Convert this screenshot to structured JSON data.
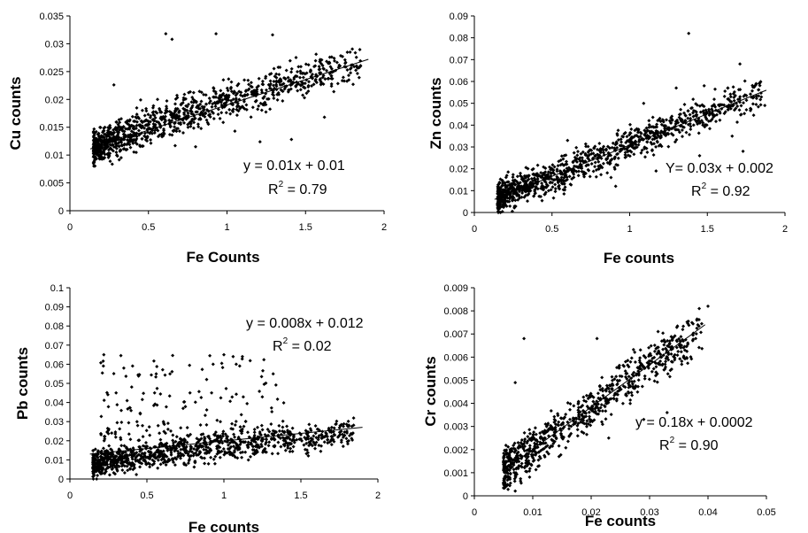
{
  "chart_data": [
    {
      "type": "scatter",
      "xlabel": "Fe Counts",
      "ylabel": "Cu counts",
      "xlim": [
        0,
        2
      ],
      "ylim": [
        0,
        0.035
      ],
      "x_ticks": [
        "0",
        "0.5",
        "1",
        "1.5",
        "2"
      ],
      "y_ticks": [
        "0",
        "0.005",
        "0.01",
        "0.015",
        "0.02",
        "0.025",
        "0.03",
        "0.035"
      ],
      "equation": "y = 0.01x + 0.01",
      "r2_label": "R",
      "r2_sup": "2",
      "r2_value": " = 0.79",
      "trendline": {
        "x": [
          0.13,
          1.9
        ],
        "y": [
          0.0111,
          0.0272
        ]
      },
      "trend_points": [
        [
          0.15,
          0.0112
        ],
        [
          0.2,
          0.0118
        ],
        [
          0.3,
          0.013
        ],
        [
          0.4,
          0.0142
        ],
        [
          0.5,
          0.0152
        ],
        [
          0.6,
          0.0163
        ],
        [
          0.7,
          0.0172
        ],
        [
          0.8,
          0.018
        ],
        [
          0.9,
          0.019
        ],
        [
          1.0,
          0.0198
        ],
        [
          1.1,
          0.0205
        ],
        [
          1.2,
          0.0212
        ],
        [
          1.3,
          0.0222
        ],
        [
          1.4,
          0.0232
        ],
        [
          1.5,
          0.024
        ],
        [
          1.6,
          0.0248
        ],
        [
          1.7,
          0.0255
        ],
        [
          1.85,
          0.0262
        ]
      ],
      "spread": 0.0016,
      "point_count": 1100,
      "outliers": [
        [
          0.61,
          0.0318
        ],
        [
          0.65,
          0.0308
        ],
        [
          0.93,
          0.0318
        ],
        [
          1.29,
          0.0316
        ],
        [
          1.21,
          0.0124
        ],
        [
          1.41,
          0.0128
        ],
        [
          1.62,
          0.0168
        ],
        [
          0.28,
          0.0226
        ],
        [
          0.67,
          0.0117
        ],
        [
          0.8,
          0.0115
        ],
        [
          1.05,
          0.0143
        ],
        [
          1.68,
          0.0214
        ],
        [
          0.45,
          0.0199
        ]
      ]
    },
    {
      "type": "scatter",
      "xlabel": "Fe counts",
      "ylabel": "Zn counts",
      "xlim": [
        0,
        2
      ],
      "ylim": [
        0,
        0.09
      ],
      "x_ticks": [
        "0",
        "0.5",
        "1",
        "1.5",
        "2"
      ],
      "y_ticks": [
        "0",
        "0.01",
        "0.02",
        "0.03",
        "0.04",
        "0.05",
        "0.06",
        "0.07",
        "0.08",
        "0.09"
      ],
      "equation": "Y= 0.03x + 0.002",
      "r2_label": "R",
      "r2_sup": "2",
      "r2_value": " = 0.92",
      "trendline": {
        "x": [
          0.13,
          1.88
        ],
        "y": [
          0.006,
          0.056
        ]
      },
      "trend_points": [
        [
          0.15,
          0.007
        ],
        [
          0.3,
          0.011
        ],
        [
          0.45,
          0.015
        ],
        [
          0.6,
          0.019
        ],
        [
          0.75,
          0.024
        ],
        [
          0.9,
          0.028
        ],
        [
          1.05,
          0.033
        ],
        [
          1.2,
          0.037
        ],
        [
          1.35,
          0.042
        ],
        [
          1.5,
          0.046
        ],
        [
          1.65,
          0.05
        ],
        [
          1.85,
          0.055
        ]
      ],
      "spread": 0.0035,
      "point_count": 1100,
      "outliers": [
        [
          1.38,
          0.082
        ],
        [
          1.71,
          0.068
        ],
        [
          1.48,
          0.058
        ],
        [
          1.09,
          0.05
        ],
        [
          1.3,
          0.057
        ],
        [
          0.88,
          0.016
        ],
        [
          0.91,
          0.012
        ],
        [
          1.17,
          0.019
        ],
        [
          1.45,
          0.026
        ],
        [
          1.66,
          0.035
        ],
        [
          1.73,
          0.028
        ],
        [
          1.87,
          0.049
        ],
        [
          0.6,
          0.033
        ]
      ]
    },
    {
      "type": "scatter",
      "xlabel": "Fe counts",
      "ylabel": "Pb counts",
      "xlim": [
        0,
        2
      ],
      "ylim": [
        0,
        0.1
      ],
      "x_ticks": [
        "0",
        "0.5",
        "1",
        "1.5",
        "2"
      ],
      "y_ticks": [
        "0",
        "0.01",
        "0.02",
        "0.03",
        "0.04",
        "0.05",
        "0.06",
        "0.07",
        "0.08",
        "0.09",
        "0.1"
      ],
      "equation": "y = 0.008x + 0.012",
      "r2_label": "R",
      "r2_sup": "2",
      "r2_value": " = 0.02",
      "trendline": {
        "x": [
          0.13,
          1.9
        ],
        "y": [
          0.013,
          0.027
        ]
      },
      "trend_points": [
        [
          0.15,
          0.008
        ],
        [
          0.3,
          0.01
        ],
        [
          0.5,
          0.012
        ],
        [
          0.7,
          0.014
        ],
        [
          0.9,
          0.016
        ],
        [
          1.1,
          0.018
        ],
        [
          1.3,
          0.02
        ],
        [
          1.5,
          0.021
        ],
        [
          1.7,
          0.023
        ],
        [
          1.85,
          0.025
        ]
      ],
      "spread": 0.0035,
      "point_count": 1000,
      "cloud": {
        "x_range": [
          0.2,
          1.4
        ],
        "y_range": [
          0.02,
          0.065
        ],
        "count": 170
      },
      "outliers": [
        [
          0.22,
          0.065
        ],
        [
          0.35,
          0.058
        ],
        [
          0.93,
          0.06
        ],
        [
          1.0,
          0.065
        ],
        [
          1.06,
          0.064
        ],
        [
          1.12,
          0.064
        ],
        [
          1.08,
          0.06
        ],
        [
          1.32,
          0.055
        ],
        [
          0.65,
          0.055
        ],
        [
          0.55,
          0.045
        ],
        [
          0.3,
          0.045
        ],
        [
          0.78,
          0.045
        ],
        [
          0.92,
          0.045
        ]
      ]
    },
    {
      "type": "scatter",
      "xlabel": "Fe counts",
      "ylabel": "Cr counts",
      "xlim": [
        0,
        0.05
      ],
      "ylim": [
        0,
        0.009
      ],
      "x_ticks": [
        "0",
        "0.01",
        "0.02",
        "0.03",
        "0.04",
        "0.05"
      ],
      "y_ticks": [
        "0",
        "0.001",
        "0.002",
        "0.003",
        "0.004",
        "0.005",
        "0.006",
        "0.007",
        "0.008",
        "0.009"
      ],
      "equation": "y = 0.18x + 0.0002",
      "r2_label": "R",
      "r2_sup": "2",
      "r2_value": " = 0.90",
      "trendline": {
        "x": [
          0.005,
          0.0395
        ],
        "y": [
          0.0011,
          0.0074
        ]
      },
      "trend_points": [
        [
          0.005,
          0.0011
        ],
        [
          0.008,
          0.0016
        ],
        [
          0.011,
          0.0022
        ],
        [
          0.015,
          0.0029
        ],
        [
          0.019,
          0.0036
        ],
        [
          0.023,
          0.0044
        ],
        [
          0.027,
          0.0051
        ],
        [
          0.031,
          0.0058
        ],
        [
          0.035,
          0.0065
        ],
        [
          0.039,
          0.0072
        ]
      ],
      "spread": 0.00045,
      "point_count": 800,
      "outliers": [
        [
          0.0085,
          0.0068
        ],
        [
          0.007,
          0.0049
        ],
        [
          0.021,
          0.0068
        ],
        [
          0.0385,
          0.0081
        ],
        [
          0.04,
          0.0082
        ],
        [
          0.0145,
          0.0017
        ],
        [
          0.023,
          0.0025
        ],
        [
          0.029,
          0.0033
        ],
        [
          0.033,
          0.0036
        ]
      ]
    }
  ]
}
